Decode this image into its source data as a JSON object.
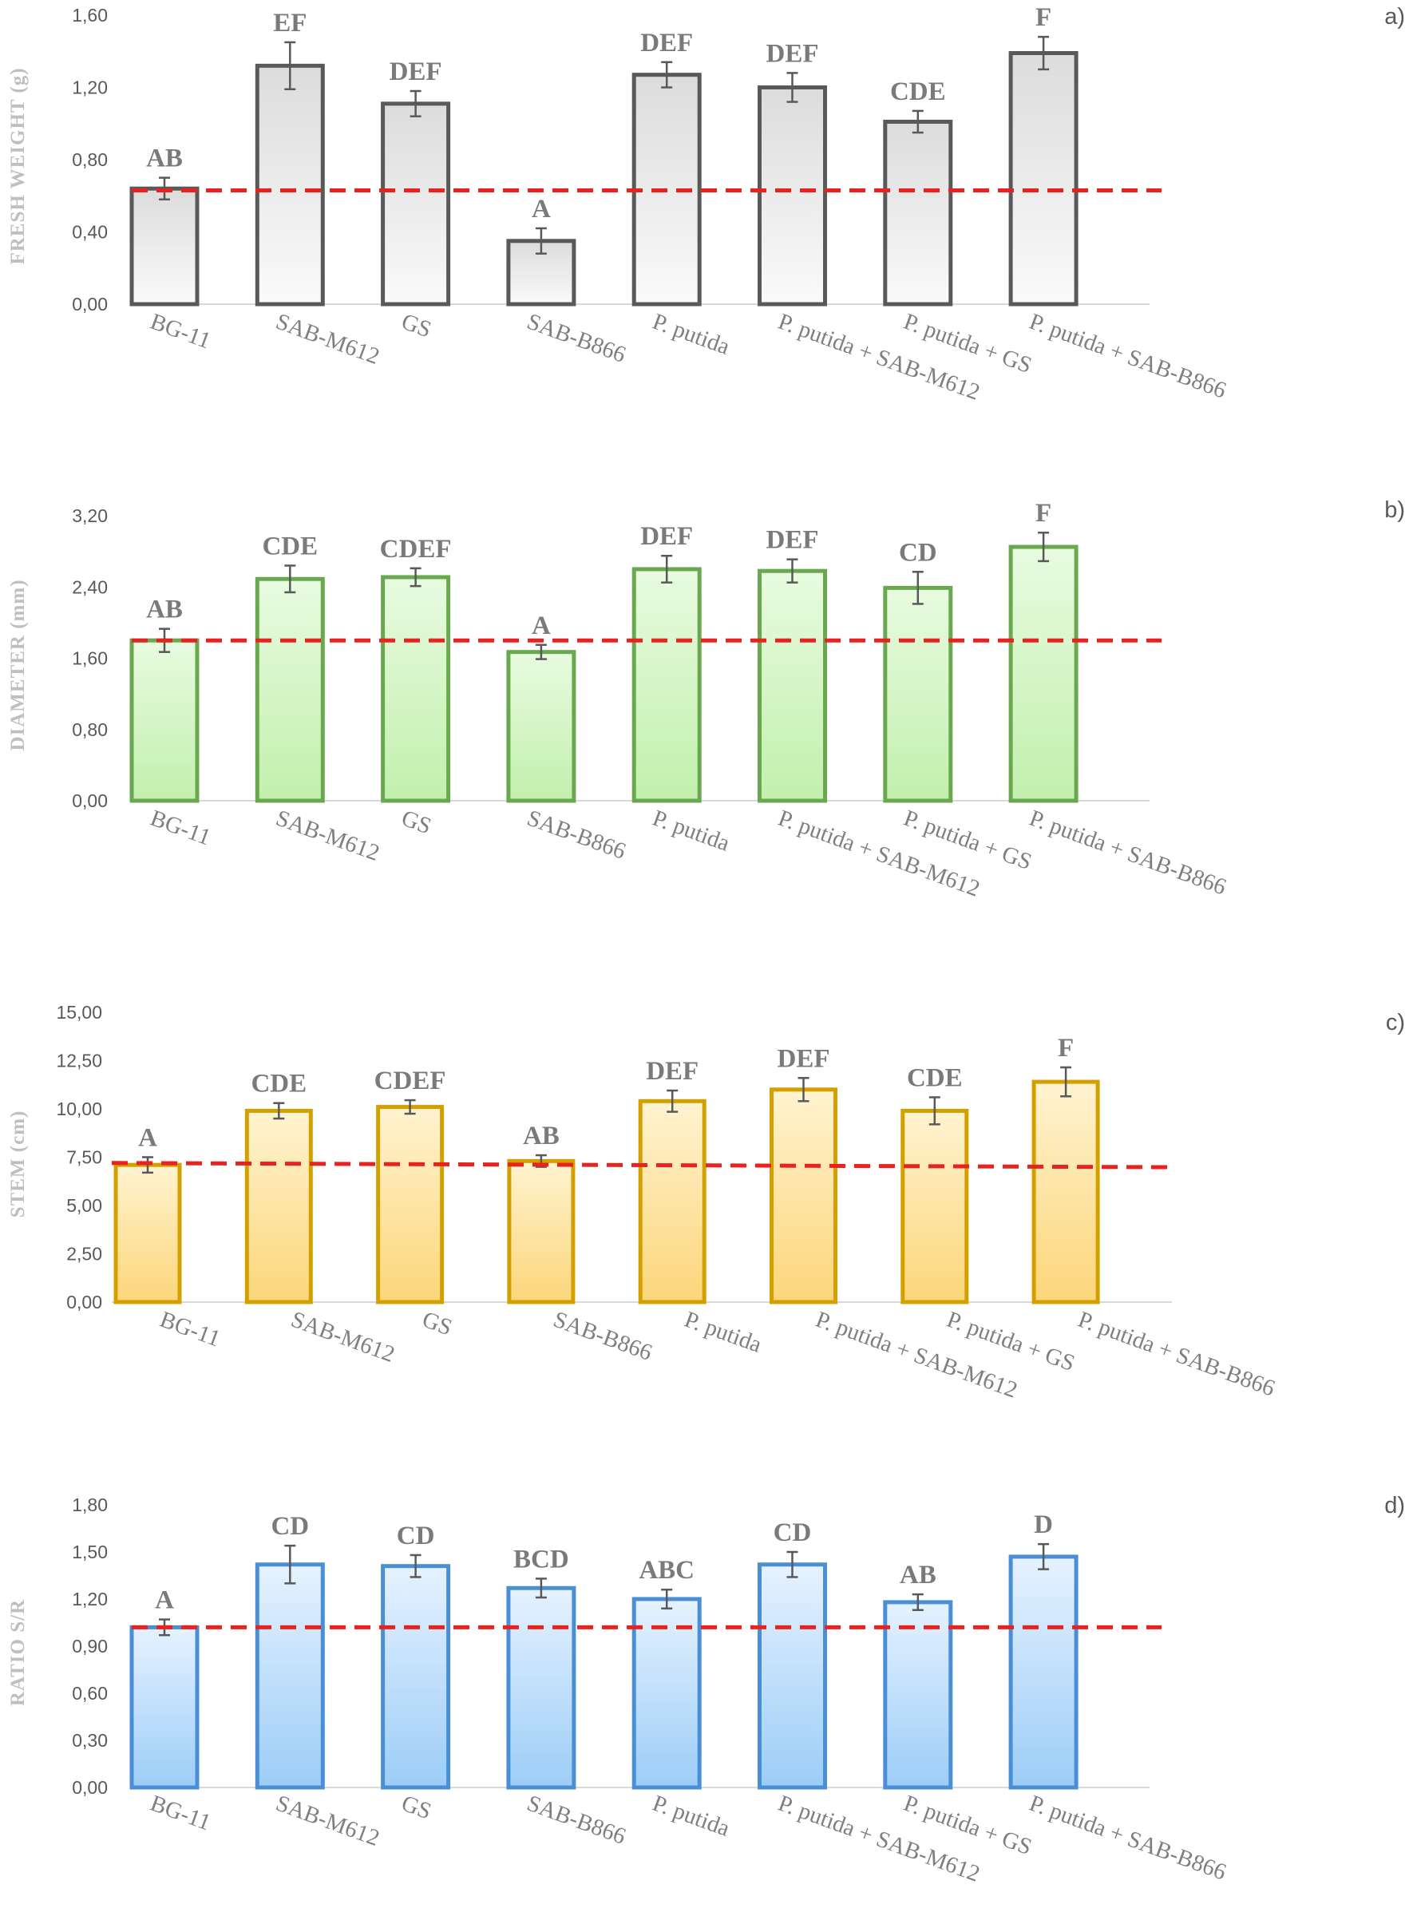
{
  "chart_data": [
    {
      "type": "bar",
      "panel": "a)",
      "ylabel": "FRESH WEIGHT (g)",
      "ylim": [
        0,
        1.6
      ],
      "yticks": [
        "0,00",
        "0,40",
        "0,80",
        "1,20",
        "1,60"
      ],
      "categories": [
        "BG-11",
        "SAB-M612",
        "GS",
        "SAB-B866",
        "P. putida",
        "P. putida + SAB-M612",
        "P. putida + GS",
        "P. putida  + SAB-B866"
      ],
      "values": [
        0.64,
        1.32,
        1.11,
        0.35,
        1.27,
        1.2,
        1.01,
        1.39
      ],
      "errors": [
        0.06,
        0.13,
        0.07,
        0.07,
        0.07,
        0.08,
        0.06,
        0.09
      ],
      "significance": [
        "AB",
        "EF",
        "DEF",
        "A",
        "DEF",
        "DEF",
        "CDE",
        "F"
      ],
      "reference_line": [
        0.63,
        0.63
      ],
      "colors": {
        "stroke": "#595959",
        "fill_top": "#dcdcdc",
        "fill_bottom": "#fafafa",
        "reference": "#e8231f",
        "error": "#595959"
      }
    },
    {
      "type": "bar",
      "panel": "b)",
      "ylabel": "DIAMETER (mm)",
      "ylim": [
        0,
        3.2
      ],
      "yticks": [
        "0,00",
        "0,80",
        "1,60",
        "2,40",
        "3,20"
      ],
      "categories": [
        "BG-11",
        "SAB-M612",
        "GS",
        "SAB-B866",
        "P. putida",
        "P. putida + SAB-M612",
        "P. putida + GS",
        "P. putida  + SAB-B866"
      ],
      "values": [
        1.8,
        2.49,
        2.51,
        1.67,
        2.6,
        2.58,
        2.39,
        2.85
      ],
      "errors": [
        0.13,
        0.15,
        0.1,
        0.08,
        0.15,
        0.13,
        0.18,
        0.16
      ],
      "significance": [
        "AB",
        "CDE",
        "CDEF",
        "A",
        "DEF",
        "DEF",
        "CD",
        "F"
      ],
      "reference_line": [
        1.8,
        1.8
      ],
      "colors": {
        "stroke": "#6aa84f",
        "fill_top": "#e8fbe0",
        "fill_bottom": "#c2f0ad",
        "reference": "#e8231f",
        "error": "#595959"
      }
    },
    {
      "type": "bar",
      "panel": "c)",
      "ylabel": "STEM (cm)",
      "ylim": [
        0,
        15
      ],
      "yticks": [
        "0,00",
        "2,50",
        "5,00",
        "7,50",
        "10,00",
        "12,50",
        "15,00"
      ],
      "categories": [
        "BG-11",
        "SAB-M612",
        "GS",
        "SAB-B866",
        "P. putida",
        "P. putida + SAB-M612",
        "P. putida + GS",
        "P. putida  + SAB-B866"
      ],
      "values": [
        7.1,
        9.9,
        10.1,
        7.3,
        10.4,
        11.0,
        9.9,
        11.4
      ],
      "errors": [
        0.4,
        0.4,
        0.35,
        0.3,
        0.55,
        0.6,
        0.7,
        0.75
      ],
      "significance": [
        "A",
        "CDE",
        "CDEF",
        "AB",
        "DEF",
        "DEF",
        "CDE",
        "F"
      ],
      "reference_line": [
        7.2,
        6.98
      ],
      "colors": {
        "stroke": "#d4a000",
        "fill_top": "#fff3d0",
        "fill_bottom": "#fcd67a",
        "reference": "#e8231f",
        "error": "#595959"
      }
    },
    {
      "type": "bar",
      "panel": "d)",
      "ylabel": "RATIO S/R",
      "ylim": [
        0,
        1.8
      ],
      "yticks": [
        "0,00",
        "0,30",
        "0,60",
        "0,90",
        "1,20",
        "1,50",
        "1,80"
      ],
      "categories": [
        "BG-11",
        "SAB-M612",
        "GS",
        "SAB-B866",
        "P. putida",
        "P. putida + SAB-M612",
        "P. putida + GS",
        "P. putida  + SAB-B866"
      ],
      "values": [
        1.02,
        1.42,
        1.41,
        1.27,
        1.2,
        1.42,
        1.18,
        1.47
      ],
      "errors": [
        0.05,
        0.12,
        0.07,
        0.06,
        0.06,
        0.08,
        0.05,
        0.08
      ],
      "significance": [
        "A",
        "CD",
        "CD",
        "BCD",
        "ABC",
        "CD",
        "AB",
        "D"
      ],
      "reference_line": [
        1.02,
        1.02
      ],
      "colors": {
        "stroke": "#4a8ed6",
        "fill_top": "#e6f2ff",
        "fill_bottom": "#9ccdf7",
        "reference": "#e8231f",
        "error": "#595959"
      }
    }
  ]
}
